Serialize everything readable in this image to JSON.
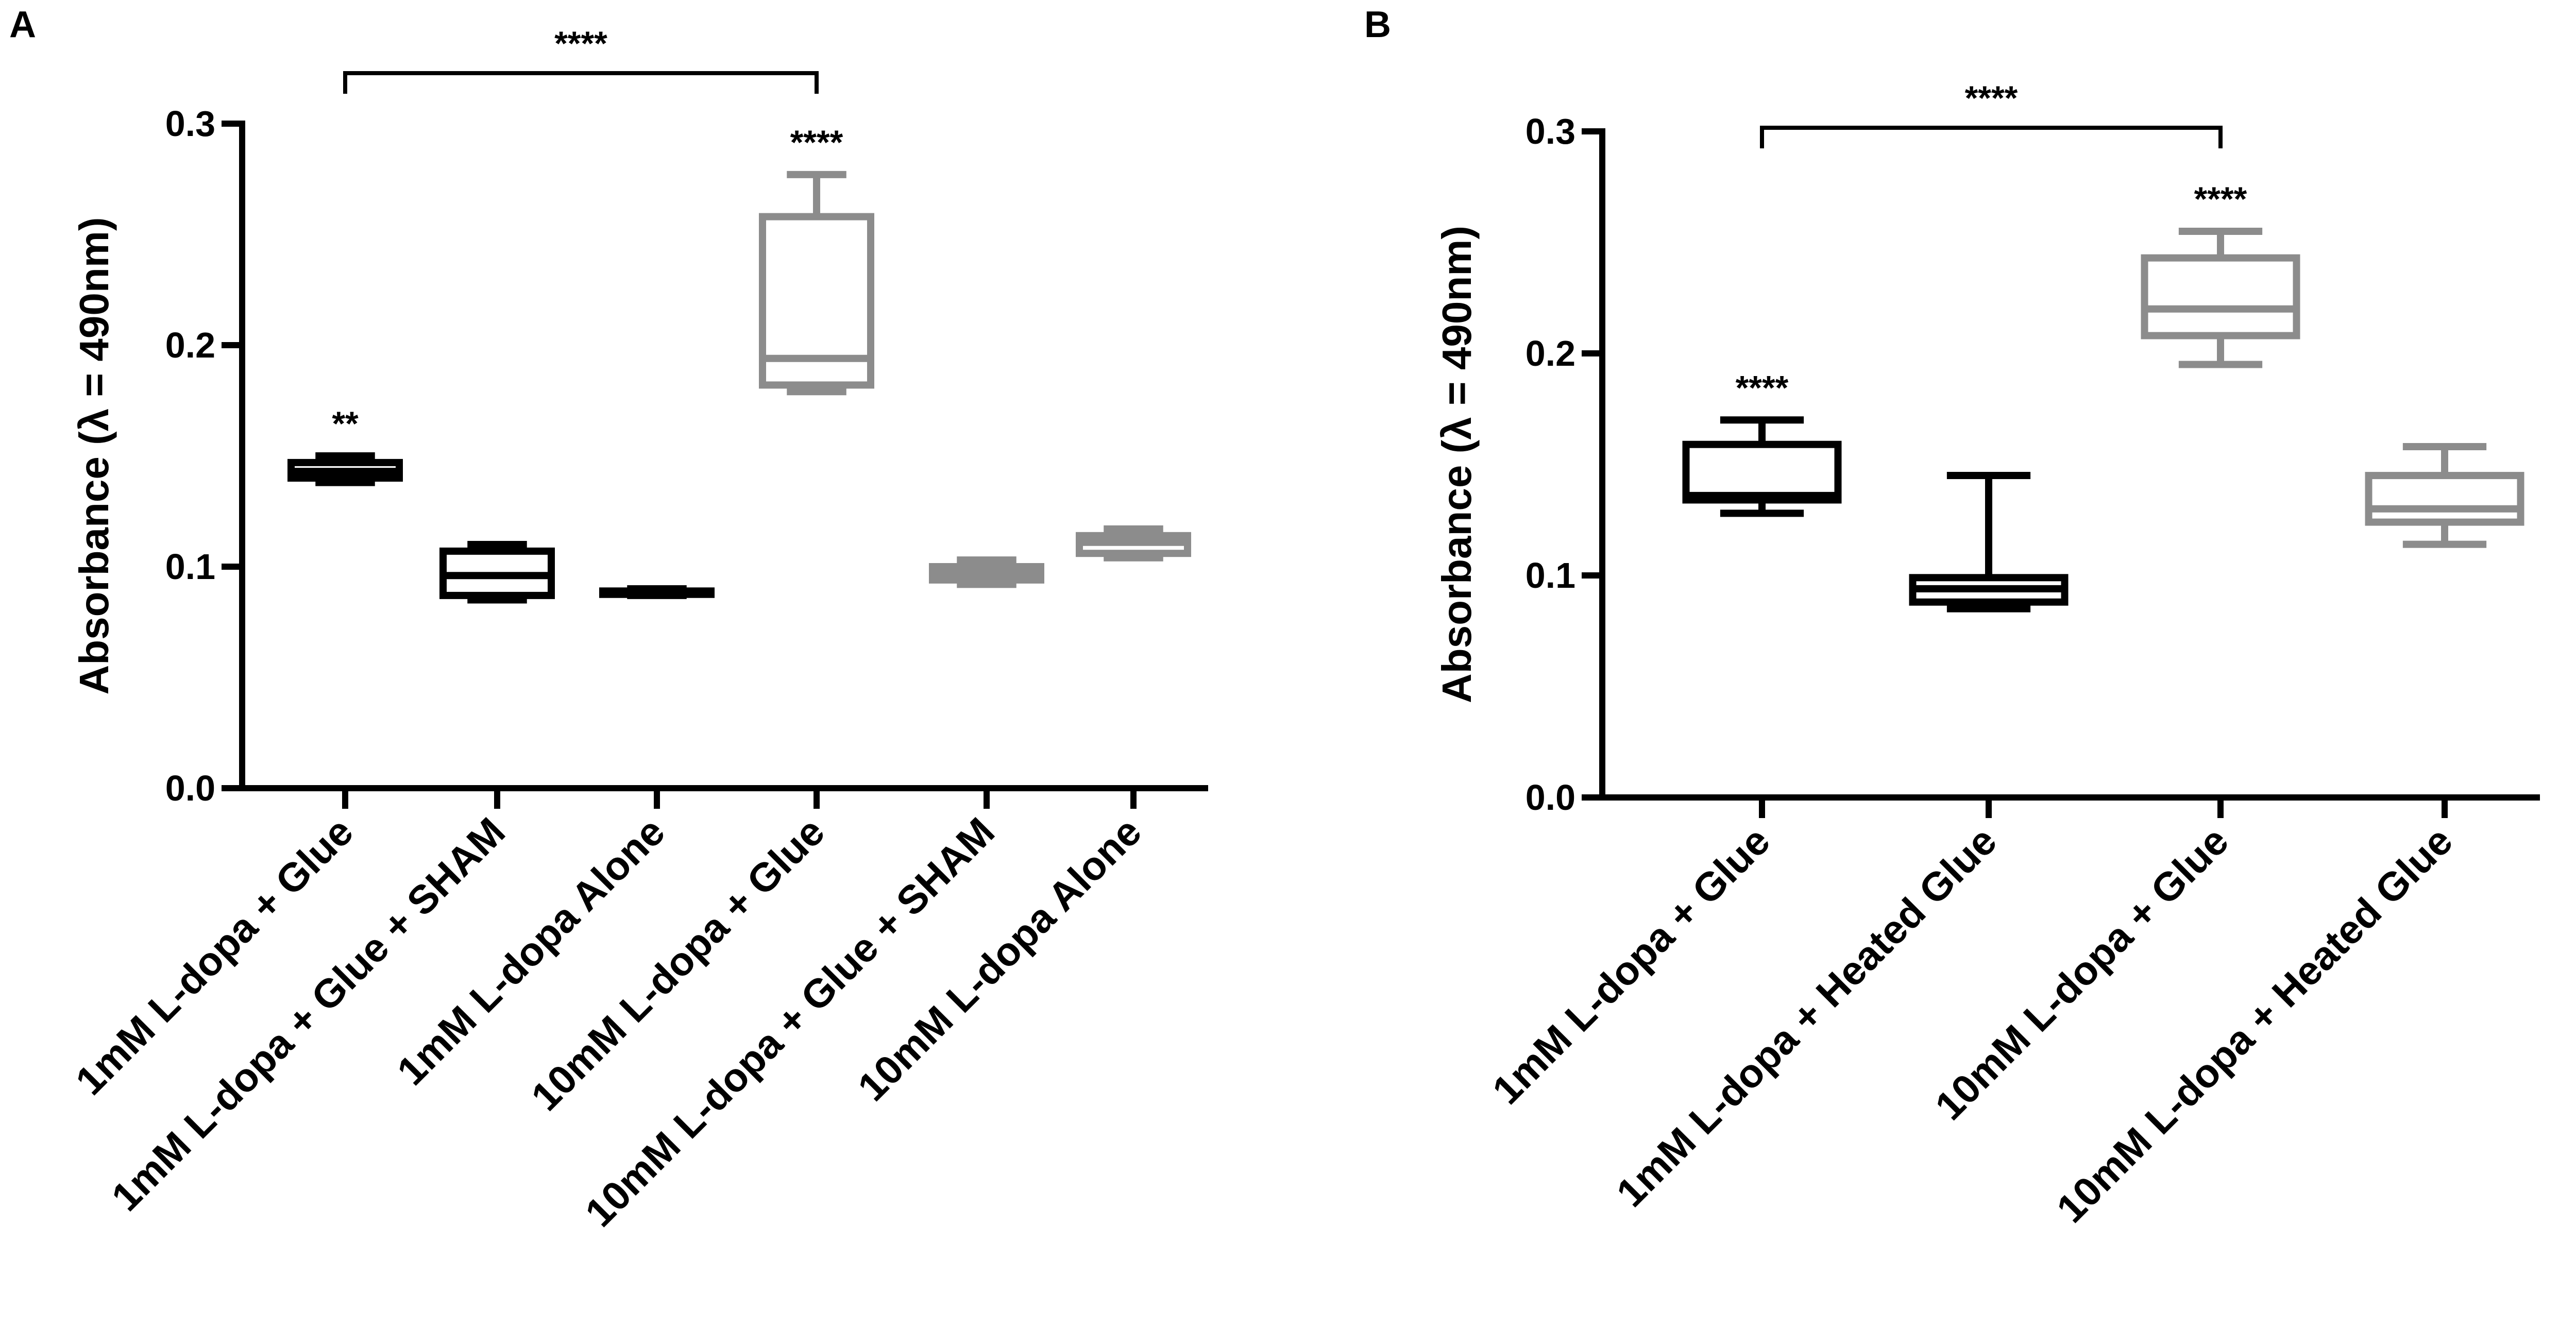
{
  "panels": [
    {
      "letter": "A"
    },
    {
      "letter": "B"
    }
  ],
  "chart_data": [
    {
      "type": "box",
      "panel": "A",
      "ylabel": "Absorbance (λ = 490nm)",
      "ylim": [
        0,
        0.3
      ],
      "yticks": [
        "0.0",
        "0.1",
        "0.2",
        "0.3"
      ],
      "grid": false,
      "categories": [
        "1mM L-dopa + Glue",
        "1mM L-dopa + Glue + SHAM",
        "1mM L-dopa Alone",
        "10mM L-dopa + Glue",
        "10mM L-dopa + Glue + SHAM",
        "10mM L-dopa Alone"
      ],
      "boxes": [
        {
          "min": 0.138,
          "q1": 0.14,
          "median": 0.143,
          "q3": 0.147,
          "max": 0.15,
          "color": "#000000",
          "annotation": "**"
        },
        {
          "min": 0.085,
          "q1": 0.087,
          "median": 0.096,
          "q3": 0.107,
          "max": 0.11,
          "color": "#000000",
          "annotation": ""
        },
        {
          "min": 0.087,
          "q1": 0.0875,
          "median": 0.088,
          "q3": 0.089,
          "max": 0.09,
          "color": "#000000",
          "annotation": ""
        },
        {
          "min": 0.179,
          "q1": 0.182,
          "median": 0.194,
          "q3": 0.258,
          "max": 0.277,
          "color": "#8c8c8c",
          "annotation": "****"
        },
        {
          "min": 0.092,
          "q1": 0.094,
          "median": 0.097,
          "q3": 0.1,
          "max": 0.103,
          "color": "#8c8c8c",
          "annotation": ""
        },
        {
          "min": 0.104,
          "q1": 0.106,
          "median": 0.111,
          "q3": 0.114,
          "max": 0.117,
          "color": "#8c8c8c",
          "annotation": ""
        }
      ],
      "bracket": {
        "from": 0,
        "to": 3,
        "label": "****"
      }
    },
    {
      "type": "box",
      "panel": "B",
      "ylabel": "Absorbance (λ = 490nm)",
      "ylim": [
        0,
        0.3
      ],
      "yticks": [
        "0.0",
        "0.1",
        "0.2",
        "0.3"
      ],
      "grid": false,
      "categories": [
        "1mM L-dopa + Glue",
        "1mM L-dopa + Heated Glue",
        "10mM L-dopa + Glue",
        "10mM L-dopa + Heated Glue"
      ],
      "boxes": [
        {
          "min": 0.128,
          "q1": 0.134,
          "median": 0.136,
          "q3": 0.159,
          "max": 0.17,
          "color": "#000000",
          "annotation": "****"
        },
        {
          "min": 0.085,
          "q1": 0.088,
          "median": 0.094,
          "q3": 0.099,
          "max": 0.145,
          "color": "#000000",
          "annotation": ""
        },
        {
          "min": 0.195,
          "q1": 0.208,
          "median": 0.22,
          "q3": 0.243,
          "max": 0.255,
          "color": "#8c8c8c",
          "annotation": "****"
        },
        {
          "min": 0.114,
          "q1": 0.124,
          "median": 0.13,
          "q3": 0.145,
          "max": 0.158,
          "color": "#8c8c8c",
          "annotation": ""
        }
      ],
      "bracket": {
        "from": 0,
        "to": 2,
        "label": "****"
      }
    }
  ]
}
